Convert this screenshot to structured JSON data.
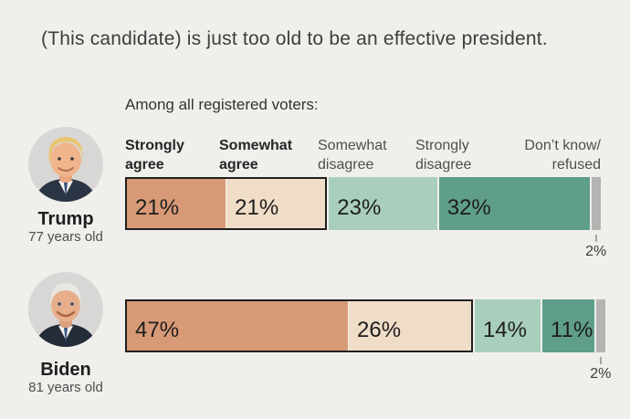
{
  "title": "(This candidate) is just too old to be an effective president.",
  "subtitle": "Among all registered voters:",
  "colors": {
    "background": "#f0efec",
    "strongly_agree": "#d89a76",
    "somewhat_agree": "#f0ddc7",
    "somewhat_disagree": "#a9cebc",
    "strongly_disagree": "#5f9e8b",
    "dont_know": "#b5b4b2",
    "agree_outline": "#1f1f1f"
  },
  "chart_data": {
    "type": "bar",
    "variant": "horizontal-stacked",
    "unit": "percent of registered voters",
    "categories": [
      "Strongly\nagree",
      "Somewhat\nagree",
      "Somewhat\ndisagree",
      "Strongly\ndisagree",
      "Don’t know/\nrefused"
    ],
    "category_emphasis": [
      true,
      true,
      false,
      false,
      false
    ],
    "legend_position": "column headers above bars",
    "agree_segments_outlined": true,
    "xlim": [
      0,
      100
    ],
    "series": [
      {
        "name": "Trump",
        "age": "77 years old",
        "values": [
          21,
          21,
          23,
          32,
          2
        ],
        "labels": [
          "21%",
          "21%",
          "23%",
          "32%",
          "2%"
        ]
      },
      {
        "name": "Biden",
        "age": "81 years old",
        "values": [
          47,
          26,
          14,
          11,
          2
        ],
        "labels": [
          "47%",
          "26%",
          "14%",
          "11%",
          "2%"
        ]
      }
    ]
  }
}
